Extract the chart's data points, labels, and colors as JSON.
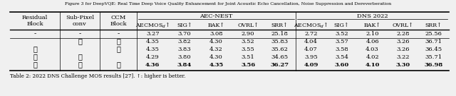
{
  "caption": "Table 2: 2022 DNS Challenge MOS results [27]. ↑: higher is better.",
  "rows": [
    {
      "c1": "-",
      "c2": "-",
      "c3": "-",
      "vals": [
        "3.27",
        "3.70",
        "3.08",
        "2.90",
        "25.18",
        "2.72",
        "3.52",
        "2.10",
        "2.28",
        "25.56"
      ],
      "bold": false
    },
    {
      "c1": "",
      "c2": "✓",
      "c3": "✓",
      "vals": [
        "4.35",
        "3.82",
        "4.30",
        "3.52",
        "35.83",
        "4.04",
        "3.57",
        "4.06",
        "3.26",
        "36.71"
      ],
      "bold": false
    },
    {
      "c1": "✓",
      "c2": "",
      "c3": "✓",
      "vals": [
        "4.35",
        "3.83",
        "4.32",
        "3.55",
        "35.62",
        "4.07",
        "3.58",
        "4.03",
        "3.26",
        "36.45"
      ],
      "bold": false
    },
    {
      "c1": "✓",
      "c2": "✓",
      "c3": "",
      "vals": [
        "4.29",
        "3.80",
        "4.30",
        "3.51",
        "34.65",
        "3.95",
        "3.54",
        "4.02",
        "3.22",
        "35.71"
      ],
      "bold": false
    },
    {
      "c1": "✓",
      "c2": "✓",
      "c3": "✓",
      "vals": [
        "4.36",
        "3.84",
        "4.35",
        "3.56",
        "36.27",
        "4.09",
        "3.60",
        "4.10",
        "3.30",
        "36.98"
      ],
      "bold": true
    }
  ],
  "bg_color": "#f0f0f0",
  "font_size": 6.0,
  "check_font_size": 7.0
}
